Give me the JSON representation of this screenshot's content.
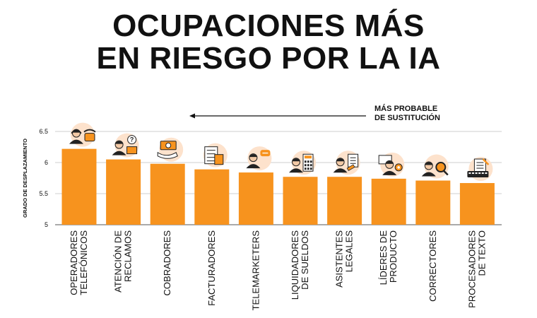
{
  "header": {
    "title_line1": "OCUPACIONES MÁS",
    "title_line2": "EN RIESGO POR LA IA"
  },
  "annotation": {
    "line1": "MÁS PROBABLE",
    "line2": "DE SUSTITUCIÓN"
  },
  "colors": {
    "bar": "#f7931e",
    "icon_circle": "#fde2cc",
    "text": "#111111"
  },
  "chart_data": {
    "type": "bar",
    "ylabel": "GRADO DE DESPLAZAMIENTO",
    "ylim": [
      5,
      6.5
    ],
    "yticks": [
      "5",
      "5.5",
      "6",
      "6.5"
    ],
    "grid": true,
    "categories": [
      [
        "OPERADORES",
        "TELEFÓNICOS"
      ],
      [
        "ATENCIÓN DE",
        "RECLAMOS"
      ],
      [
        "COBRADORES"
      ],
      [
        "FACTURADORES"
      ],
      [
        "TELEMARKETERS"
      ],
      [
        "LIQUIDADORES",
        "DE SUELDOS"
      ],
      [
        "ASISTENTES",
        "LEGALES"
      ],
      [
        "LÍDERES DE",
        "PRODUCTO"
      ],
      [
        "CORRECTORES"
      ],
      [
        "PROCESADORES",
        "DE TEXTO"
      ]
    ],
    "values": [
      6.22,
      6.05,
      5.98,
      5.89,
      5.84,
      5.77,
      5.77,
      5.74,
      5.71,
      5.67
    ],
    "icons": [
      "telephone-operator-icon",
      "complaints-agent-icon",
      "money-collector-icon",
      "invoice-calculator-icon",
      "telemarketer-icon",
      "payroll-calculator-icon",
      "legal-assistant-icon",
      "product-leader-icon",
      "proofreader-magnifier-icon",
      "keyboard-document-icon"
    ]
  }
}
